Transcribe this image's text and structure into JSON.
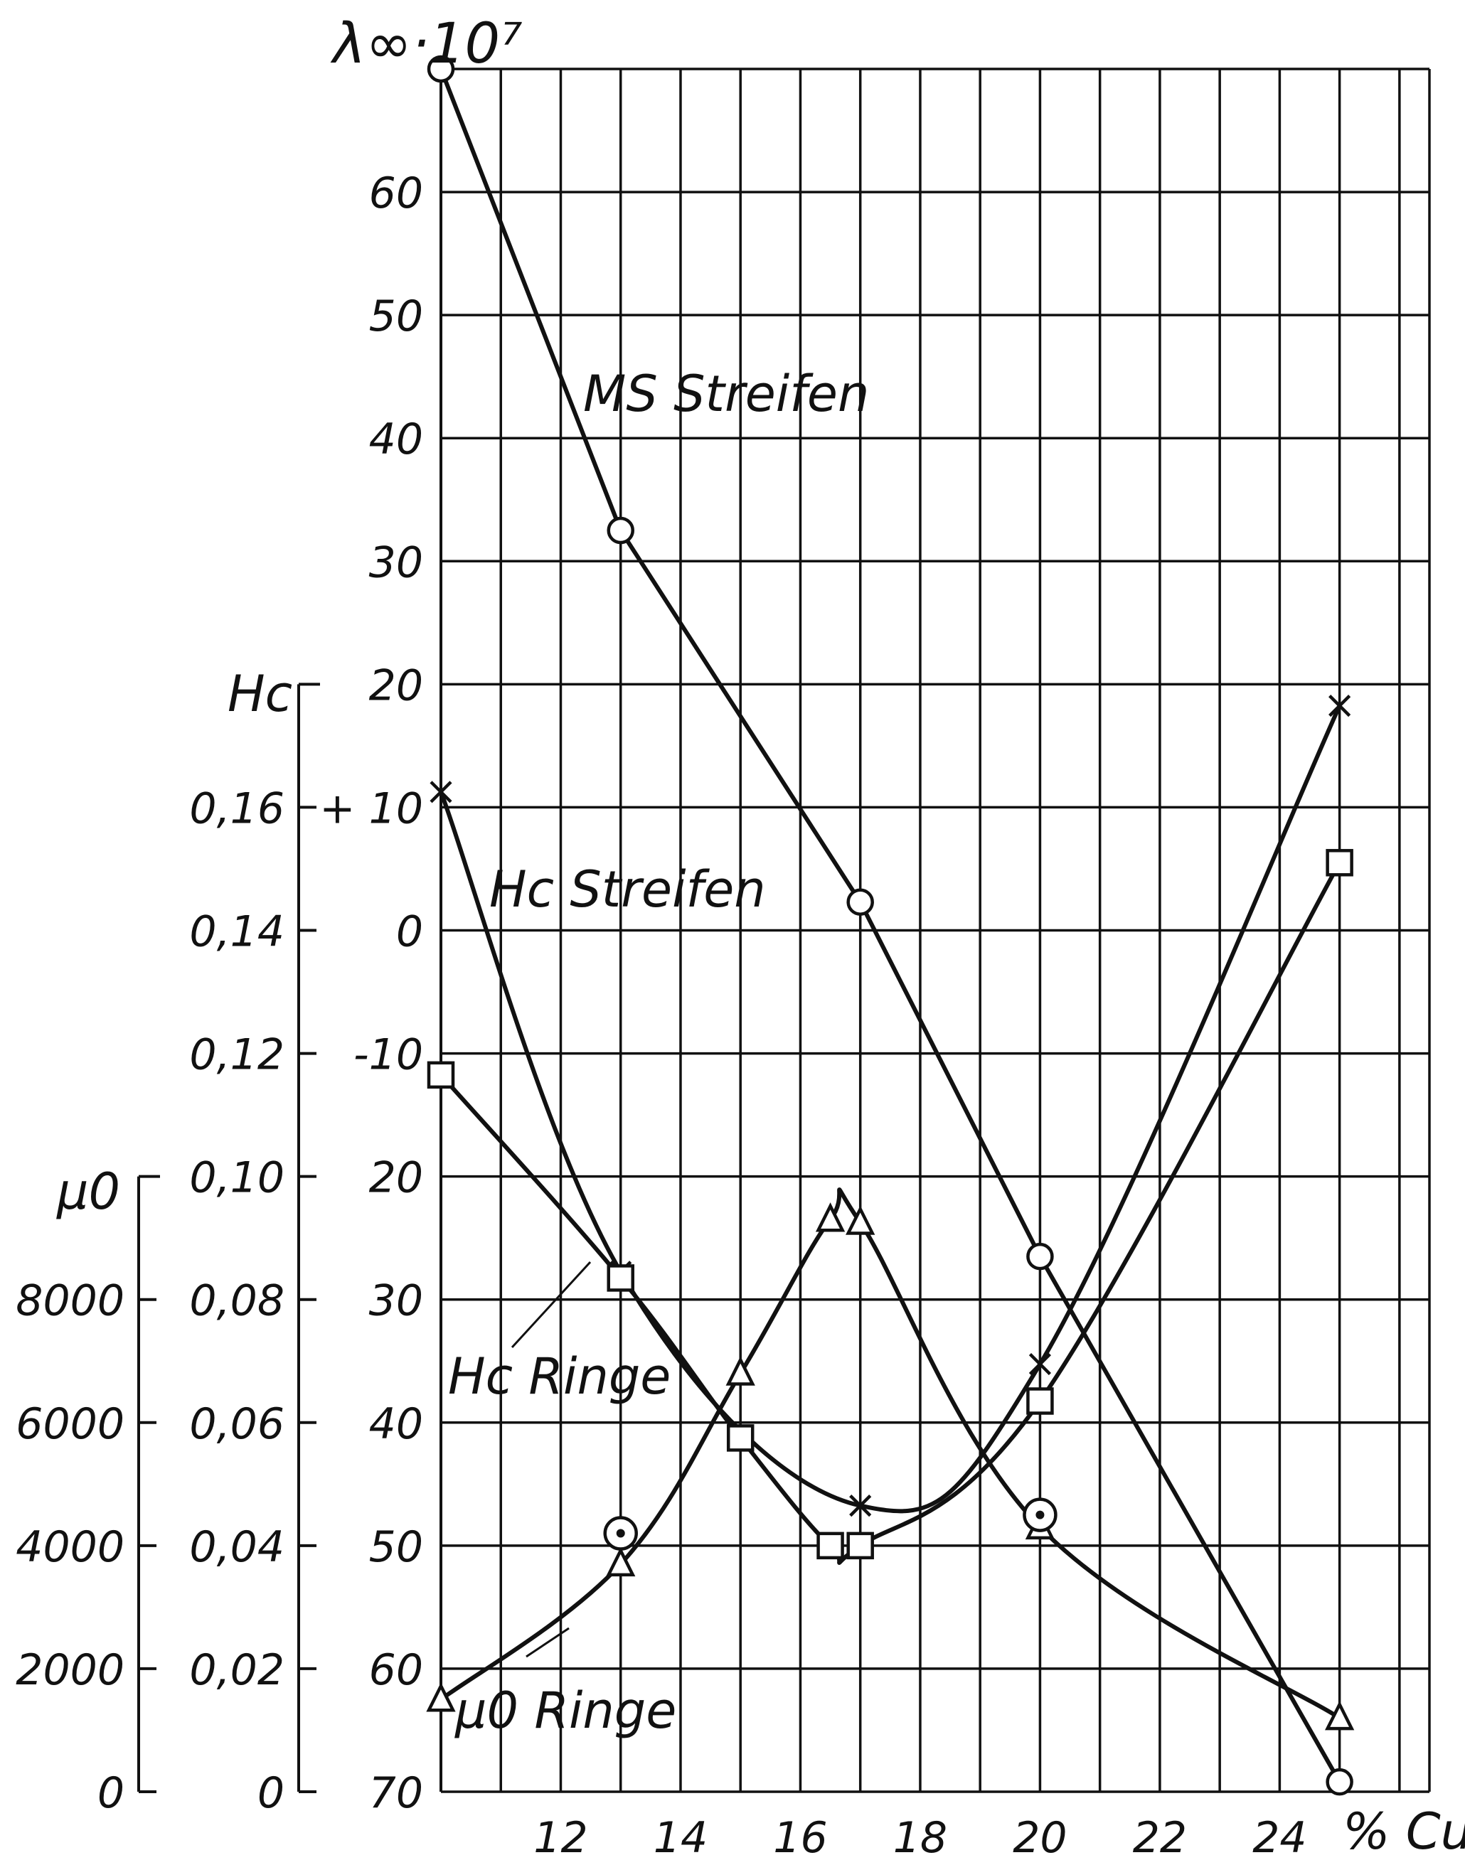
{
  "chart_data": {
    "type": "line",
    "x_axis": {
      "label": "% Cu",
      "tick_labels": [
        "12",
        "14",
        "16",
        "18",
        "20",
        "22",
        "24"
      ],
      "range": [
        10,
        26.5
      ]
    },
    "y_axes": [
      {
        "name": "lambda",
        "label": "λ∞·10⁷",
        "range": [
          -70,
          70
        ],
        "tick_labels": [
          "60",
          "50",
          "40",
          "30",
          "20",
          "+ 10",
          "0",
          "-10",
          "20",
          "30",
          "40",
          "50",
          "60",
          "70"
        ]
      },
      {
        "name": "Hc",
        "label": "Hc",
        "range": [
          0,
          0.18
        ],
        "tick_labels": [
          "0,16",
          "0,14",
          "0,12",
          "0,10",
          "0,08",
          "0,06",
          "0,04",
          "0,02",
          "0"
        ]
      },
      {
        "name": "mu0",
        "label": "μ0",
        "range": [
          0,
          10000
        ],
        "tick_labels": [
          "8000",
          "6000",
          "4000",
          "2000",
          "0"
        ]
      }
    ],
    "series": [
      {
        "name": "MS Streifen",
        "axis": "lambda",
        "marker": "circle",
        "x": [
          10,
          13,
          17,
          20,
          25
        ],
        "y": [
          70,
          32.5,
          2.3,
          -26.5,
          -69.2
        ]
      },
      {
        "name": "Hc Streifen",
        "axis": "Hc",
        "marker": "cross",
        "x": [
          10,
          13,
          17,
          20,
          25
        ],
        "y": [
          0.1625,
          0.0845,
          0.0465,
          0.0695,
          0.1765
        ]
      },
      {
        "name": "Hc Ringe",
        "axis": "Hc",
        "marker": "square",
        "x": [
          10,
          13,
          15,
          16.5,
          17,
          20,
          25
        ],
        "y": [
          0.1165,
          0.0835,
          0.0575,
          0.04,
          0.04,
          0.0635,
          0.151
        ]
      },
      {
        "name": "μ0 Ringe",
        "axis": "mu0",
        "marker": "triangle",
        "x": [
          10,
          13,
          15,
          16.5,
          17,
          20,
          25
        ],
        "y": [
          1500,
          3700,
          6800,
          9300,
          9250,
          4300,
          1200
        ]
      }
    ],
    "extra_points": [
      {
        "marker": "dotted-circle",
        "axis": "mu0",
        "x": 13,
        "y": 4200
      },
      {
        "marker": "dotted-circle",
        "axis": "mu0",
        "x": 20,
        "y": 4500
      }
    ],
    "annotations": [
      "MS Streifen",
      "Hc Streifen",
      "Hc Ringe",
      "μ0 Ringe"
    ],
    "grid": true
  }
}
